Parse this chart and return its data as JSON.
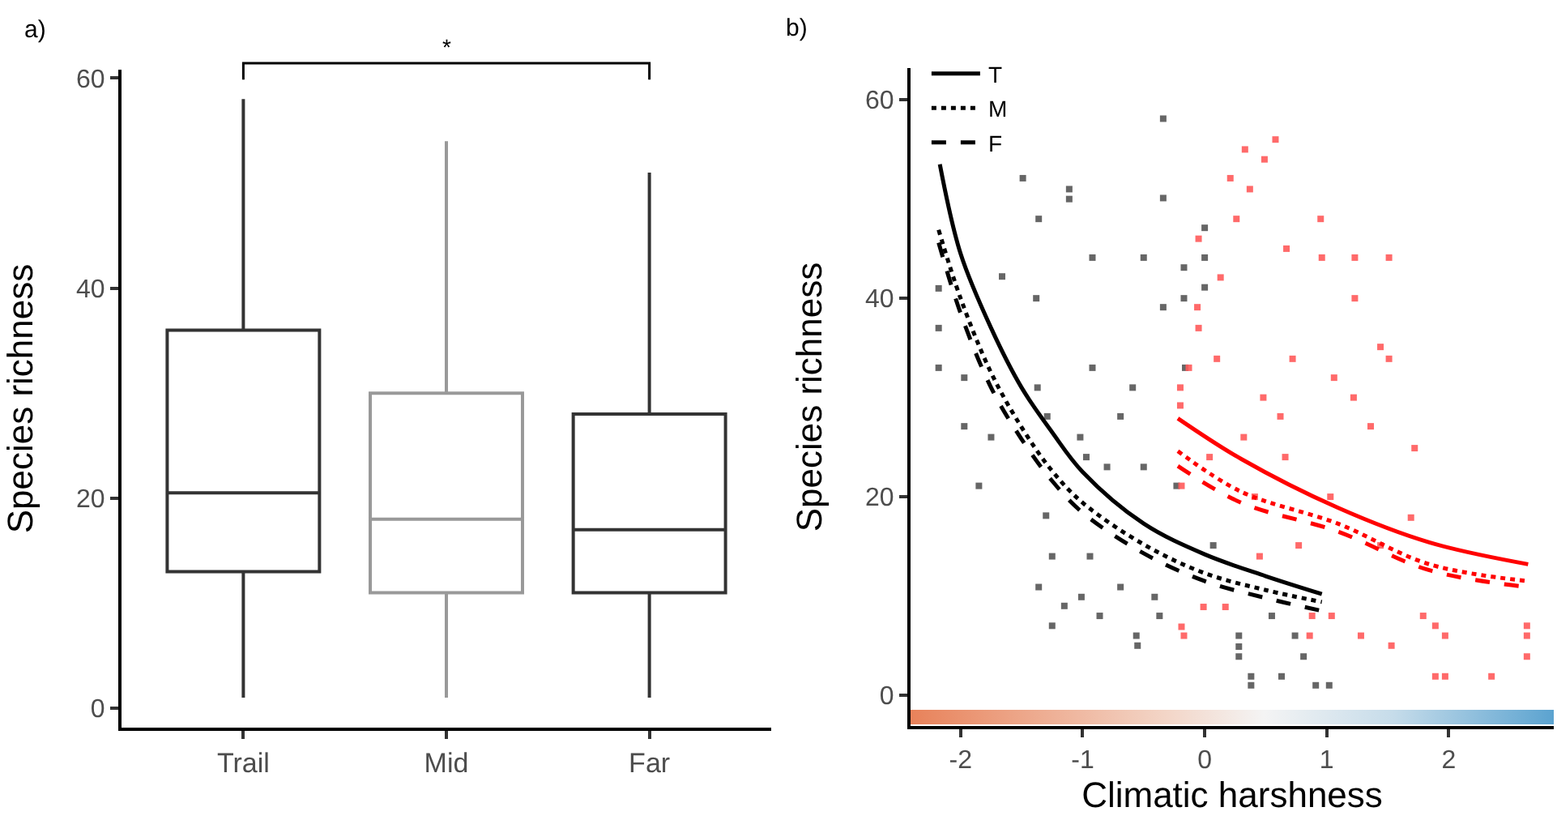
{
  "chart_data": [
    {
      "type": "box",
      "ylabel": "Species richness",
      "annotations": [
        "a)",
        "*"
      ],
      "categories": [
        "Trail",
        "Mid",
        "Far"
      ],
      "colors": [
        "#333333",
        "#999999",
        "#333333"
      ],
      "boxes": [
        {
          "low": 1,
          "q1": 13,
          "median": 20.5,
          "q3": 36,
          "high": 58
        },
        {
          "low": 1,
          "q1": 11,
          "median": 18,
          "q3": 30,
          "high": 54
        },
        {
          "low": 1,
          "q1": 11,
          "median": 17,
          "q3": 28,
          "high": 51
        }
      ],
      "ylim": [
        -1.85,
        60.8
      ],
      "yticks": [
        0,
        20,
        40,
        60
      ],
      "grid": false,
      "legend": false
    },
    {
      "type": "scatter",
      "xlabel": "Climatic harshness",
      "ylabel": "Species richness",
      "annotations": [
        "b)"
      ],
      "xlim": [
        -2.41,
        2.86
      ],
      "ylim": [
        -3.1,
        63.2
      ],
      "xticks": [
        -2,
        -1,
        0,
        1,
        2
      ],
      "yticks": [
        0,
        20,
        40,
        60
      ],
      "grid": false,
      "legend": "top left",
      "series": [
        {
          "color": "#555555",
          "marker": "square",
          "x": [
            -2.18,
            -2.18,
            -2.18,
            -1.97,
            -1.97,
            -1.85,
            -1.75,
            -1.66,
            -1.49,
            -1.36,
            -1.38,
            -1.11,
            -1.11,
            -1.37,
            -1.29,
            -1.3,
            -1.25,
            -1.36,
            -1.25,
            -1.15,
            -0.92,
            -0.92,
            -1.02,
            -0.97,
            -0.94,
            -1.01,
            -0.86,
            -0.8,
            -0.69,
            -0.69,
            -0.59,
            -0.56,
            -0.55,
            -0.5,
            -0.5,
            -0.34,
            -0.34,
            -0.34,
            -0.41,
            -0.37,
            -0.17,
            -0.17,
            0.0,
            0.0,
            0.0,
            0.38,
            0.38,
            0.28,
            0.63,
            -0.23,
            -0.16,
            0.28,
            0.28,
            0.74,
            0.81,
            0.91,
            1.02,
            0.55,
            0.07
          ],
          "values": [
            41,
            37,
            33,
            32,
            27.1,
            21.1,
            26,
            42.2,
            52.1,
            48,
            40,
            51,
            50,
            31,
            28.1,
            18.1,
            14,
            10.9,
            7,
            9,
            44.1,
            33,
            26,
            24,
            14,
            9.9,
            8,
            23,
            28.1,
            10.9,
            31,
            6,
            5,
            44.1,
            23,
            58.1,
            50.1,
            39.1,
            9.9,
            8,
            43.1,
            40,
            47.1,
            44.1,
            41.1,
            1.9,
            1,
            4.9,
            1.9,
            21.1,
            33,
            6,
            3.9,
            6,
            3.9,
            1,
            1,
            8,
            15.1
          ]
        },
        {
          "color": "#ff5a5a",
          "marker": "square",
          "x": [
            0.58,
            0.33,
            0.49,
            0.21,
            0.37,
            0.26,
            0.95,
            -0.05,
            0.67,
            0.96,
            1.23,
            1.51,
            0.13,
            1.23,
            -0.05,
            0.1,
            1.44,
            1.51,
            1.06,
            -0.2,
            1.22,
            0.62,
            1.36,
            1.72,
            -0.19,
            1.69,
            1.44,
            1.89,
            1.97,
            1.89,
            1.97,
            2.35,
            2.64,
            2.64,
            2.64,
            1.53,
            1.28,
            1.04,
            0.86,
            -0.17,
            0.17,
            0.45,
            0.77,
            0.66,
            0.88,
            1.79,
            0.72,
            0.48,
            0.32,
            0.04,
            0.41,
            1.03,
            -0.01,
            -0.19,
            -0.2,
            -0.13,
            -0.06
          ],
          "values": [
            56,
            55,
            54,
            52.1,
            51,
            48,
            48,
            46,
            45,
            44.1,
            44.1,
            44.1,
            42.1,
            40,
            37,
            33.9,
            35.1,
            33.9,
            32,
            31,
            30,
            28.1,
            27.1,
            24.9,
            21.1,
            17.9,
            15.1,
            7,
            6,
            1.9,
            1.9,
            1.9,
            7,
            6,
            3.9,
            5,
            6,
            8,
            6,
            6,
            8.9,
            14,
            15.1,
            24,
            8,
            8,
            33.9,
            30,
            26,
            24,
            20,
            20,
            8.9,
            6.9,
            29.2,
            33,
            39.1
          ]
        },
        {
          "type": "line",
          "name": "T",
          "color": "#000000",
          "line_style": "solid",
          "x": [
            -2.17,
            -2,
            -1.75,
            -1.5,
            -1.25,
            -1,
            -0.5,
            0,
            0.5,
            0.96
          ],
          "values": [
            53.5,
            44.5,
            37,
            31,
            26.5,
            22.5,
            17.3,
            14.2,
            12,
            10.2
          ]
        },
        {
          "type": "line",
          "name": "M",
          "color": "#000000",
          "line_style": "dotted",
          "x": [
            -2.18,
            -2,
            -1.75,
            -1.5,
            -1.25,
            -1,
            -0.5,
            0,
            0.5,
            0.96
          ],
          "values": [
            46.9,
            40,
            32.5,
            27,
            22.6,
            19.4,
            15.2,
            12.3,
            10.6,
            9.4
          ]
        },
        {
          "type": "line",
          "name": "F",
          "color": "#000000",
          "line_style": "dashed",
          "x": [
            -2.18,
            -2,
            -1.75,
            -1.5,
            -1.25,
            -1,
            -0.5,
            0,
            0.5,
            0.96
          ],
          "values": [
            45.6,
            38.5,
            31,
            25.8,
            21.6,
            18.4,
            14.3,
            11.5,
            9.8,
            8.5
          ]
        },
        {
          "type": "line",
          "color": "#ff0000",
          "line_style": "solid",
          "x": [
            -0.22,
            0.3,
            1.09,
            1.84,
            2.65
          ],
          "values": [
            27.9,
            23.8,
            18.9,
            15.4,
            13.2
          ]
        },
        {
          "type": "line",
          "color": "#ff0000",
          "line_style": "dotted",
          "x": [
            -0.22,
            0.3,
            1.09,
            1.84,
            2.65
          ],
          "values": [
            24.6,
            20.5,
            17.3,
            13.2,
            11.5
          ]
        },
        {
          "type": "line",
          "color": "#ff0000",
          "line_style": "dashed",
          "x": [
            -0.22,
            0.3,
            1.09,
            1.84,
            2.65
          ],
          "values": [
            23.1,
            19.4,
            16.5,
            12.6,
            10.9
          ]
        }
      ]
    }
  ]
}
